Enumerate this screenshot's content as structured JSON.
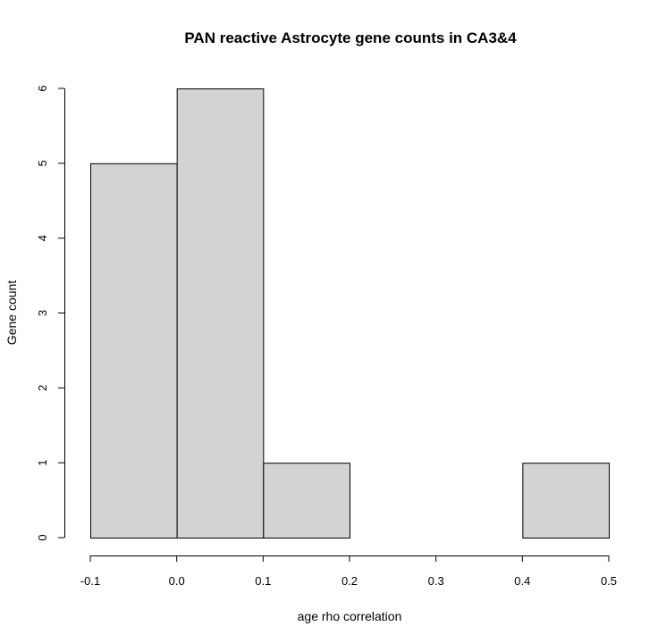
{
  "chart_data": {
    "type": "bar",
    "title": "PAN reactive Astrocyte gene counts in CA3&4",
    "xlabel": "age rho correlation",
    "ylabel": "Gene count",
    "bins": [
      {
        "start": -0.1,
        "end": 0.0,
        "count": 5
      },
      {
        "start": 0.0,
        "end": 0.1,
        "count": 6
      },
      {
        "start": 0.1,
        "end": 0.2,
        "count": 1
      },
      {
        "start": 0.2,
        "end": 0.3,
        "count": 0
      },
      {
        "start": 0.3,
        "end": 0.4,
        "count": 0
      },
      {
        "start": 0.4,
        "end": 0.5,
        "count": 1
      }
    ],
    "xlim": [
      -0.1,
      0.5
    ],
    "ylim": [
      0,
      6
    ],
    "x_ticks": [
      "-0.1",
      "0.0",
      "0.1",
      "0.2",
      "0.3",
      "0.4",
      "0.5"
    ],
    "y_ticks": [
      "0",
      "1",
      "2",
      "3",
      "4",
      "5",
      "6"
    ],
    "grid": false,
    "bar_color": "#d3d3d3"
  }
}
